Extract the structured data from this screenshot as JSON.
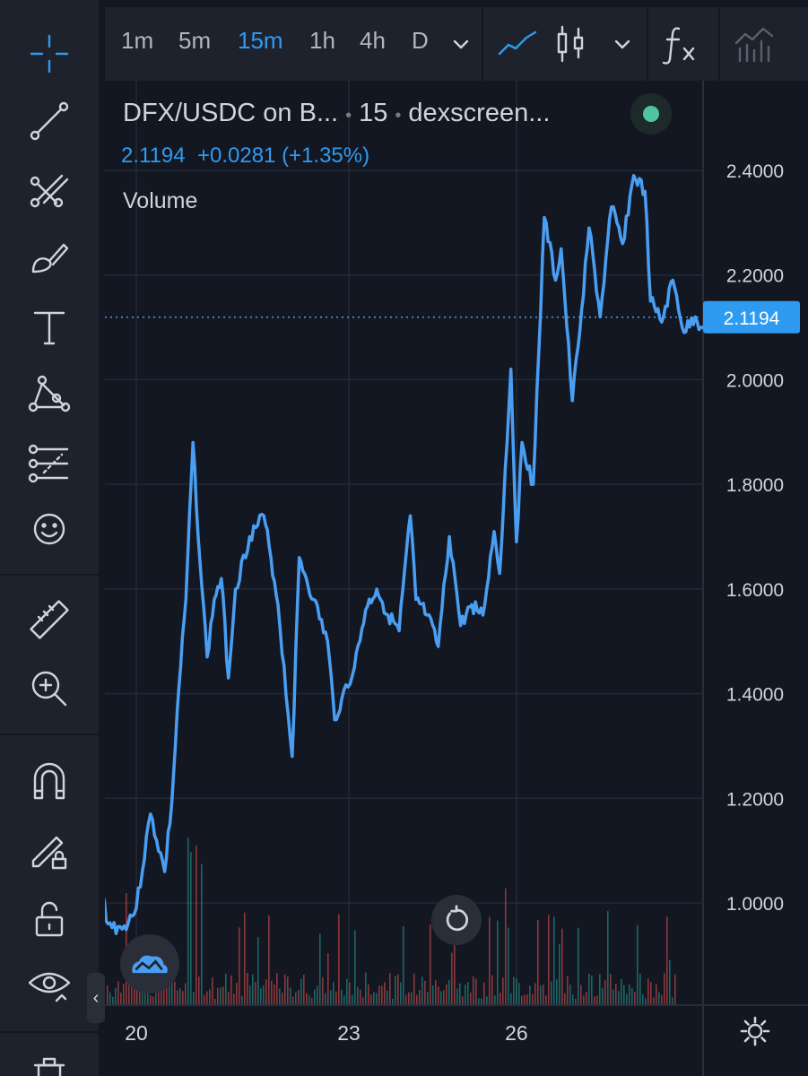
{
  "toolbar": {
    "timeframes": [
      "1m",
      "5m",
      "15m",
      "1h",
      "4h",
      "D"
    ],
    "active_timeframe": "15m",
    "icons": [
      "chevron-down-icon",
      "line-chart-icon",
      "candlestick-icon",
      "chevron-down-icon",
      "indicators-fx-icon",
      "compare-bars-icon"
    ]
  },
  "sidebar": {
    "icons": [
      "crosshair-icon",
      "trend-line-icon",
      "fib-pitchfork-icon",
      "brush-icon",
      "text-icon",
      "pattern-icon",
      "prediction-icon",
      "emoji-icon",
      "ruler-icon",
      "zoom-in-icon",
      "magnet-icon",
      "lock-drawing-icon",
      "unlock-icon",
      "eye-icon",
      "trash-icon"
    ]
  },
  "legend": {
    "symbol": "DFX/USDC on B...",
    "interval": "15",
    "source": "dexscreen...",
    "last_price": "2.1194",
    "change": "+0.0281",
    "change_pct": "(+1.35%)",
    "volume_label": "Volume"
  },
  "colors": {
    "background": "#131722",
    "panel": "#1e222d",
    "line": "#4a9ef2",
    "accent": "#2f9bf0",
    "status": "#4fc59f",
    "volume_up": "#26a69a",
    "volume_down": "#ef5350"
  },
  "chart_data": {
    "type": "line",
    "symbol": "DFX/USDC",
    "y_ticks": [
      "2.4000",
      "2.2000",
      "2.0000",
      "1.8000",
      "1.6000",
      "1.4000",
      "1.2000",
      "1.0000"
    ],
    "y_tick_values": [
      2.4,
      2.2,
      2.0,
      1.8,
      1.6,
      1.4,
      1.2,
      1.0
    ],
    "x_ticks": [
      "20",
      "23",
      "26"
    ],
    "x_tick_values": [
      20,
      23,
      26
    ],
    "last_price_label": "2.1194",
    "last_value": 2.1194,
    "x_range": [
      19.5,
      29.6
    ],
    "series": [
      {
        "name": "DFX/USDC",
        "x": [
          19.5,
          19.6,
          19.8,
          20.0,
          20.2,
          20.4,
          20.5,
          20.6,
          20.7,
          20.8,
          20.9,
          21.0,
          21.1,
          21.2,
          21.3,
          21.4,
          21.6,
          21.8,
          21.9,
          22.0,
          22.2,
          22.3,
          22.4,
          22.5,
          22.7,
          22.8,
          22.9,
          23.1,
          23.3,
          23.5,
          23.7,
          23.9,
          24.1,
          24.2,
          24.4,
          24.6,
          24.8,
          24.9,
          25.0,
          25.2,
          25.4,
          25.6,
          25.7,
          25.9,
          26.0,
          26.1,
          26.3,
          26.5,
          26.7,
          26.8,
          27.0,
          27.1,
          27.3,
          27.5,
          27.7,
          27.9,
          28.1,
          28.3,
          28.4,
          28.5,
          28.6,
          28.8,
          29.0,
          29.2,
          29.3,
          29.4,
          29.5,
          29.6
        ],
        "y": [
          1.03,
          0.96,
          0.95,
          0.99,
          1.17,
          1.06,
          1.19,
          1.41,
          1.58,
          1.88,
          1.65,
          1.47,
          1.58,
          1.62,
          1.43,
          1.6,
          1.7,
          1.74,
          1.66,
          1.57,
          1.28,
          1.66,
          1.62,
          1.58,
          1.5,
          1.35,
          1.39,
          1.45,
          1.56,
          1.6,
          1.55,
          1.52,
          1.74,
          1.58,
          1.55,
          1.49,
          1.7,
          1.62,
          1.53,
          1.57,
          1.55,
          1.71,
          1.63,
          2.02,
          1.69,
          1.88,
          1.8,
          2.31,
          2.19,
          2.25,
          1.96,
          2.06,
          2.29,
          2.12,
          2.33,
          2.26,
          2.39,
          2.36,
          2.15,
          2.13,
          2.11,
          2.19,
          2.09,
          2.12,
          2.1,
          2.11,
          2.12,
          2.1194
        ]
      }
    ],
    "grid": true,
    "volume_pane": true
  }
}
